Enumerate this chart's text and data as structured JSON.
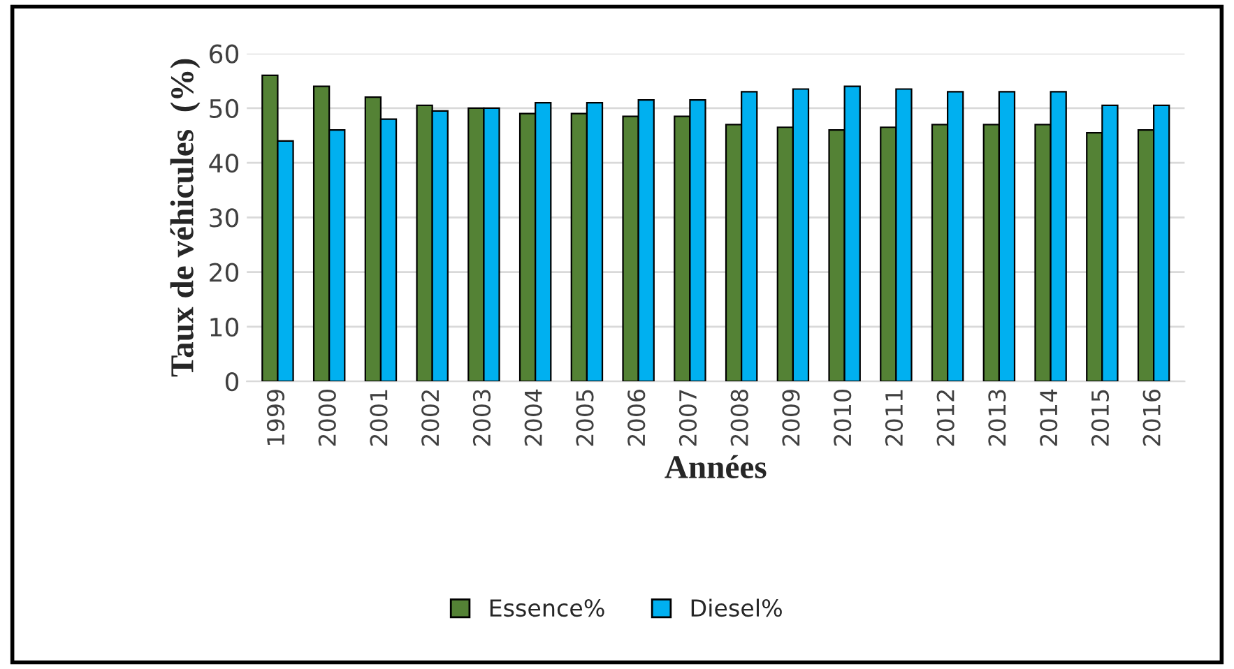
{
  "chart_data": {
    "type": "bar",
    "xlabel": "Années",
    "ylabel": "Taux de véhicules  (%)",
    "categories": [
      "1999",
      "2000",
      "2001",
      "2002",
      "2003",
      "2004",
      "2005",
      "2006",
      "2007",
      "2008",
      "2009",
      "2010",
      "2011",
      "2012",
      "2013",
      "2014",
      "2015",
      "2016"
    ],
    "series": [
      {
        "name": "Essence%",
        "color": "#548235",
        "values": [
          56,
          54,
          52,
          50.5,
          50,
          49,
          49,
          48.5,
          48.5,
          47,
          46.5,
          46,
          46.5,
          47,
          47,
          47,
          45.5,
          46
        ]
      },
      {
        "name": "Diesel%",
        "color": "#00b0f0",
        "values": [
          44,
          46,
          48,
          49.5,
          50,
          51,
          51,
          51.5,
          51.5,
          53,
          53.5,
          54,
          53.5,
          53,
          53,
          53,
          50.5,
          50.5
        ]
      }
    ],
    "ylim": [
      0,
      60
    ],
    "yticks": [
      0,
      10,
      20,
      30,
      40,
      50,
      60
    ],
    "grid": "y",
    "legend": "bottom"
  }
}
